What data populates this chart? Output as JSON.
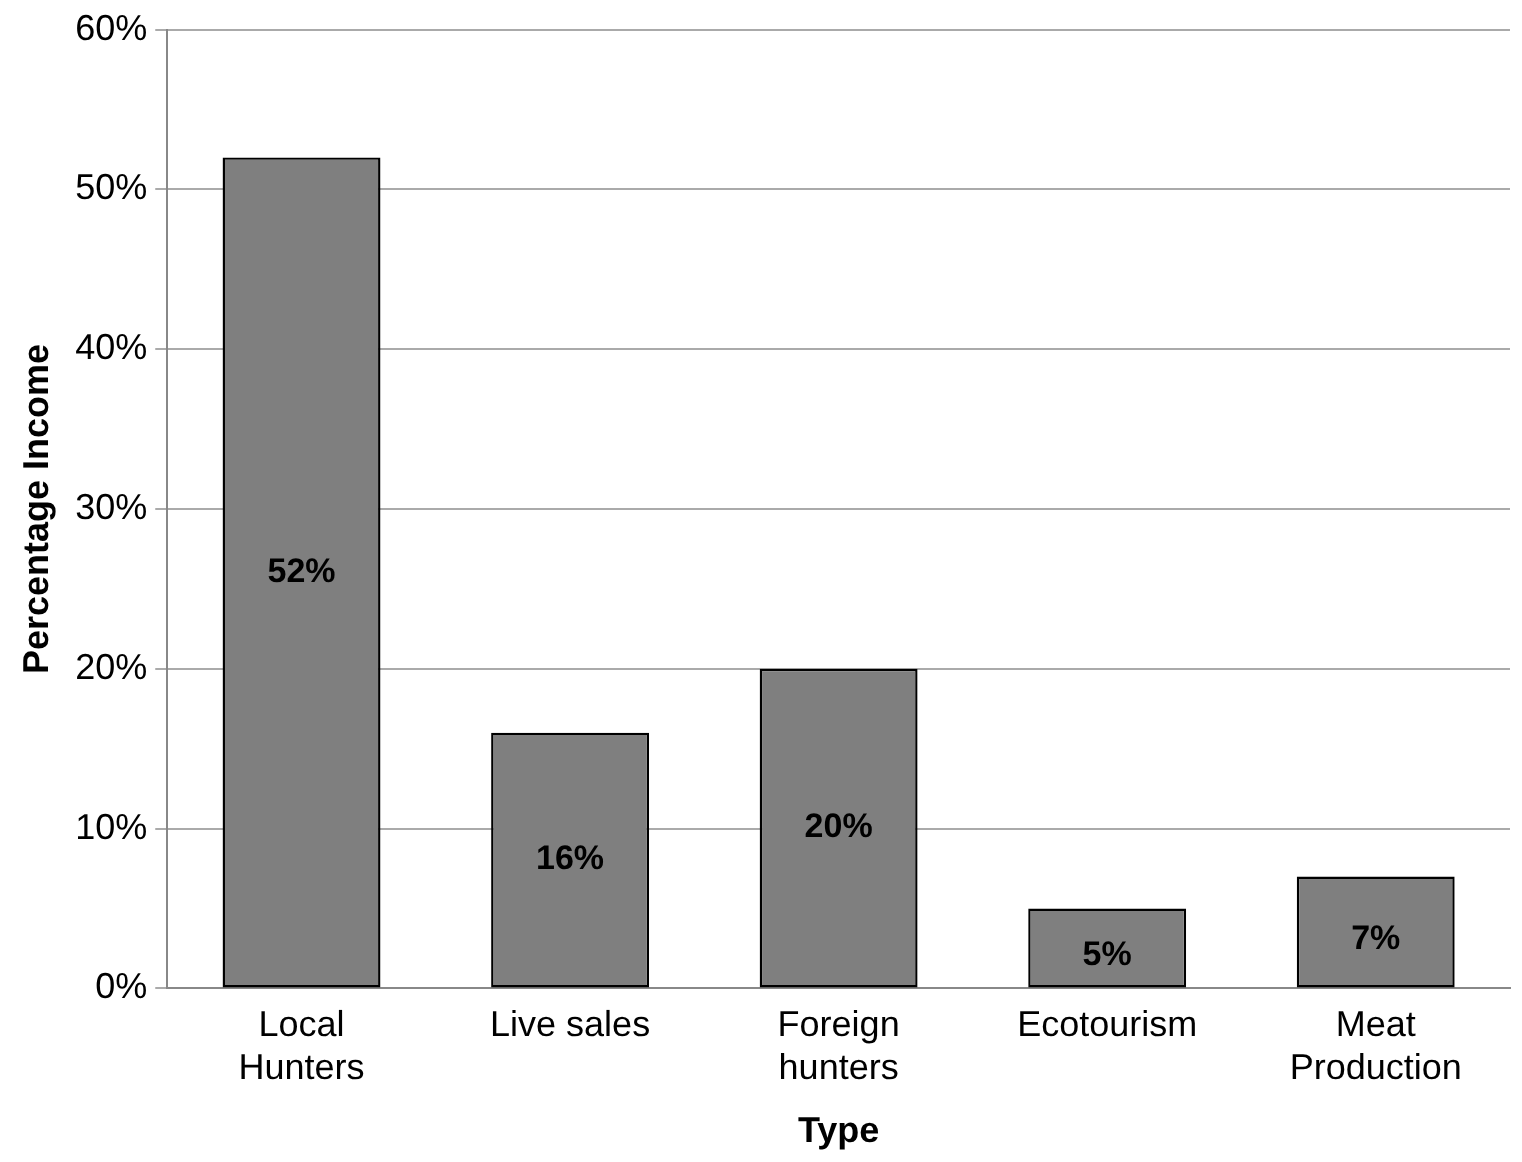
{
  "chart_data": {
    "type": "bar",
    "xlabel": "Type",
    "ylabel": "Percentage Income",
    "categories": [
      "Local Hunters",
      "Live sales",
      "Foreign hunters",
      "Ecotourism",
      "Meat Production"
    ],
    "values": [
      52,
      16,
      20,
      5,
      7
    ],
    "color": "#7f7f7f",
    "value_labels": [
      "52%",
      "16%",
      "20%",
      "5%",
      "7%"
    ],
    "ylim": [
      0,
      60
    ],
    "yticks": [
      {
        "value": 0,
        "label": "0%"
      },
      {
        "value": 10,
        "label": "10%"
      },
      {
        "value": 20,
        "label": "20%"
      },
      {
        "value": 30,
        "label": "30%"
      },
      {
        "value": 40,
        "label": "40%"
      },
      {
        "value": 50,
        "label": "50%"
      },
      {
        "value": 60,
        "label": "60%"
      }
    ],
    "grid": "y",
    "legend": false
  }
}
